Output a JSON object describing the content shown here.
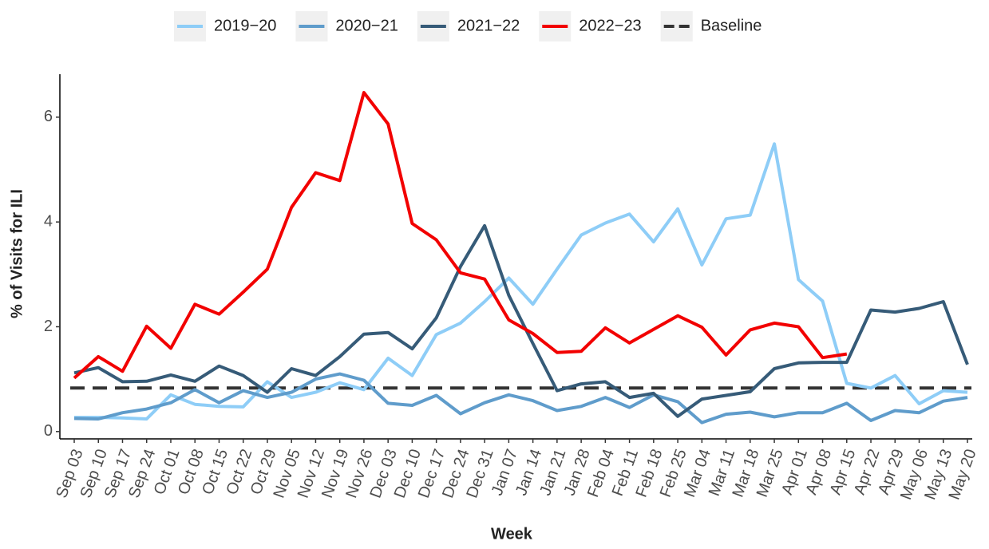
{
  "chart_data": {
    "type": "line",
    "x_label": "Week",
    "y_label": "% of Visits for ILI",
    "categories": [
      "Sep 03",
      "Sep 10",
      "Sep 17",
      "Sep 24",
      "Oct 01",
      "Oct 08",
      "Oct 15",
      "Oct 22",
      "Oct 29",
      "Nov 05",
      "Nov 12",
      "Nov 19",
      "Nov 26",
      "Dec 03",
      "Dec 10",
      "Dec 17",
      "Dec 24",
      "Dec 31",
      "Jan 07",
      "Jan 14",
      "Jan 21",
      "Jan 28",
      "Feb 04",
      "Feb 11",
      "Feb 18",
      "Feb 25",
      "Mar 04",
      "Mar 11",
      "Mar 18",
      "Mar 25",
      "Apr 01",
      "Apr 08",
      "Apr 15",
      "Apr 22",
      "Apr 29",
      "May 06",
      "May 13",
      "May 20"
    ],
    "series": [
      {
        "name": "2019−20",
        "color": "#8ecdf7",
        "values": [
          0.27,
          0.27,
          0.26,
          0.24,
          0.7,
          0.52,
          0.48,
          0.47,
          0.95,
          0.65,
          0.75,
          0.93,
          0.8,
          1.4,
          1.07,
          1.85,
          2.07,
          2.48,
          2.93,
          2.43,
          3.1,
          3.75,
          3.98,
          4.15,
          3.62,
          4.25,
          3.18,
          4.06,
          4.13,
          5.49,
          2.9,
          2.49,
          0.92,
          0.83,
          1.07,
          0.53,
          0.78,
          0.75
        ]
      },
      {
        "name": "2020−21",
        "color": "#5f9ccb",
        "values": [
          0.25,
          0.24,
          0.36,
          0.43,
          0.55,
          0.8,
          0.55,
          0.78,
          0.65,
          0.75,
          1.0,
          1.1,
          0.98,
          0.54,
          0.5,
          0.69,
          0.34,
          0.55,
          0.7,
          0.59,
          0.4,
          0.48,
          0.65,
          0.46,
          0.7,
          0.57,
          0.17,
          0.33,
          0.37,
          0.28,
          0.36,
          0.36,
          0.54,
          0.21,
          0.4,
          0.36,
          0.58,
          0.65
        ]
      },
      {
        "name": "2021−22",
        "color": "#365b78",
        "values": [
          1.12,
          1.22,
          0.95,
          0.96,
          1.08,
          0.96,
          1.25,
          1.07,
          0.75,
          1.2,
          1.07,
          1.43,
          1.86,
          1.89,
          1.58,
          2.17,
          3.15,
          3.93,
          2.6,
          1.68,
          0.78,
          0.91,
          0.95,
          0.65,
          0.73,
          0.29,
          0.62,
          0.69,
          0.76,
          1.2,
          1.31,
          1.32,
          1.32,
          2.32,
          2.28,
          2.35,
          2.48,
          1.28
        ]
      },
      {
        "name": "2022−23",
        "color": "#f20000",
        "values": [
          1.02,
          1.43,
          1.15,
          2.01,
          1.59,
          2.43,
          2.24,
          2.66,
          3.1,
          4.28,
          4.94,
          4.79,
          6.47,
          5.87,
          3.97,
          3.66,
          3.03,
          2.91,
          2.13,
          1.87,
          1.51,
          1.53,
          1.98,
          1.69,
          1.95,
          2.21,
          1.99,
          1.46,
          1.94,
          2.07,
          2.0,
          1.41,
          1.48,
          null,
          null,
          null,
          null,
          null
        ]
      }
    ],
    "baseline": {
      "name": "Baseline",
      "value": 0.83,
      "color": "#333333"
    },
    "ylim": [
      -0.14,
      6.82
    ],
    "yticks": [
      0,
      2,
      4,
      6
    ]
  }
}
